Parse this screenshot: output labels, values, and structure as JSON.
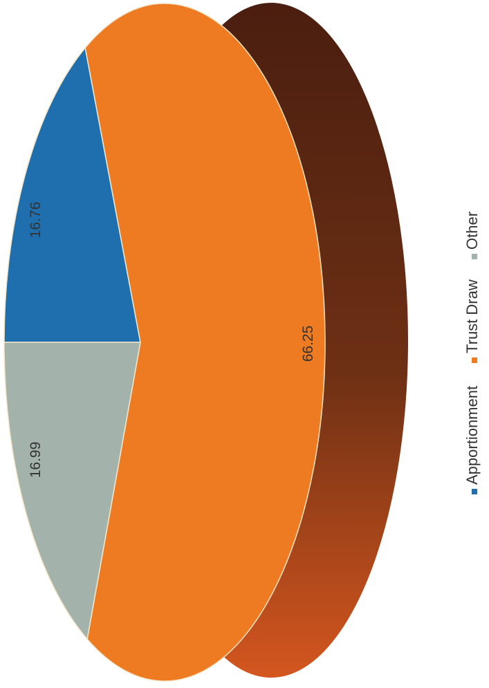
{
  "chart_data": {
    "type": "pie",
    "style": "3d",
    "orientation": "rotated-90-ccw",
    "legend_position": "right",
    "slices": [
      {
        "name": "Apportionment",
        "value": 16.76,
        "label": "16.76",
        "color": "#1f6fae"
      },
      {
        "name": "Trust Draw",
        "value": 66.25,
        "label": "66.25",
        "color": "#ee7a22"
      },
      {
        "name": "Other",
        "value": 16.99,
        "label": "16.99",
        "color": "#a3b3ac"
      }
    ],
    "side_color": "#5c2a14"
  }
}
